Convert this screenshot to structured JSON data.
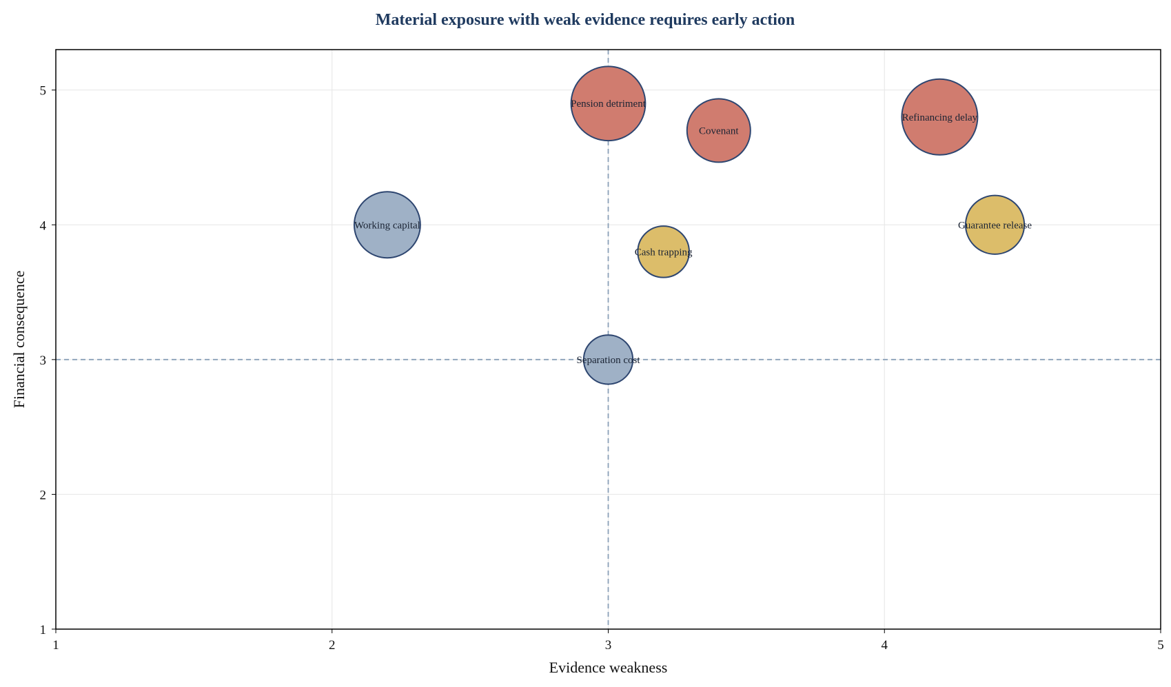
{
  "chart_data": {
    "type": "scatter",
    "title": "Material exposure with weak evidence requires early action",
    "xlabel": "Evidence weakness",
    "ylabel": "Financial consequence",
    "xlim": [
      1,
      5
    ],
    "ylim": [
      1,
      5.3
    ],
    "xticks": [
      1,
      2,
      3,
      4,
      5
    ],
    "yticks": [
      1,
      2,
      3,
      4,
      5
    ],
    "grid": true,
    "legend": "none",
    "thresholds": {
      "x": 3,
      "y": 3
    },
    "colors": {
      "red": "#d07c6f",
      "gold": "#dcbd6a",
      "blue": "#9fb1c6",
      "edge": "#2e4670",
      "threshold": "#8aa0b8",
      "title": "#1f3a5f"
    },
    "points": [
      {
        "label": "Pension detriment",
        "x": 3.0,
        "y": 4.9,
        "size": 4.8,
        "color": "red"
      },
      {
        "label": "Covenant",
        "x": 3.4,
        "y": 4.7,
        "size": 3.5,
        "color": "red"
      },
      {
        "label": "Refinancing delay",
        "x": 4.2,
        "y": 4.8,
        "size": 5.0,
        "color": "red"
      },
      {
        "label": "Working capital",
        "x": 2.2,
        "y": 4.0,
        "size": 3.8,
        "color": "blue"
      },
      {
        "label": "Guarantee release",
        "x": 4.4,
        "y": 4.0,
        "size": 3.0,
        "color": "gold"
      },
      {
        "label": "Cash trapping",
        "x": 3.2,
        "y": 3.8,
        "size": 2.3,
        "color": "gold"
      },
      {
        "label": "Separation cost",
        "x": 3.0,
        "y": 3.0,
        "size": 2.1,
        "color": "blue"
      }
    ]
  }
}
